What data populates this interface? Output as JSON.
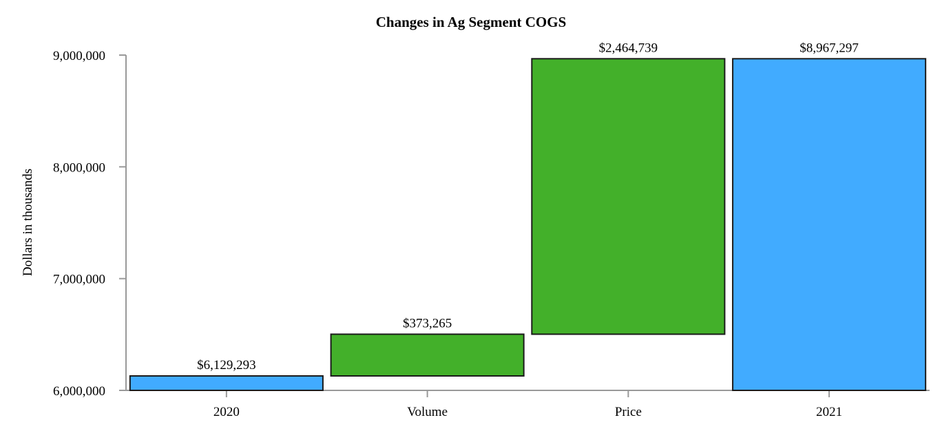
{
  "chart_data": {
    "type": "waterfall",
    "title": "Changes in Ag Segment COGS",
    "xlabel": "",
    "ylabel": "Dollars in thousands",
    "ylim": [
      6000000,
      9000000
    ],
    "yticks": [
      6000000,
      7000000,
      8000000,
      9000000
    ],
    "ytick_labels": [
      "6,000,000",
      "7,000,000",
      "8,000,000",
      "9,000,000"
    ],
    "grid": false,
    "legend": null,
    "categories": [
      "2020",
      "Volume",
      "Price",
      "2021"
    ],
    "values": [
      6129293,
      373265,
      2464739,
      8967297
    ],
    "bars": [
      {
        "category": "2020",
        "kind": "total",
        "start": 6000000,
        "end": 6129293,
        "value": 6129293,
        "label": "$6,129,293",
        "color": "#41abff"
      },
      {
        "category": "Volume",
        "kind": "increase",
        "start": 6129293,
        "end": 6502558,
        "value": 373265,
        "label": "$373,265",
        "color": "#43b02a"
      },
      {
        "category": "Price",
        "kind": "increase",
        "start": 6502558,
        "end": 8967297,
        "value": 2464739,
        "label": "$2,464,739",
        "color": "#43b02a"
      },
      {
        "category": "2021",
        "kind": "total",
        "start": 6000000,
        "end": 8967297,
        "value": 8967297,
        "label": "$8,967,297",
        "color": "#41abff"
      }
    ],
    "colors": {
      "total": "#41abff",
      "increase": "#43b02a",
      "bar_border": "#1a1a1a",
      "axis": "#999999"
    }
  }
}
